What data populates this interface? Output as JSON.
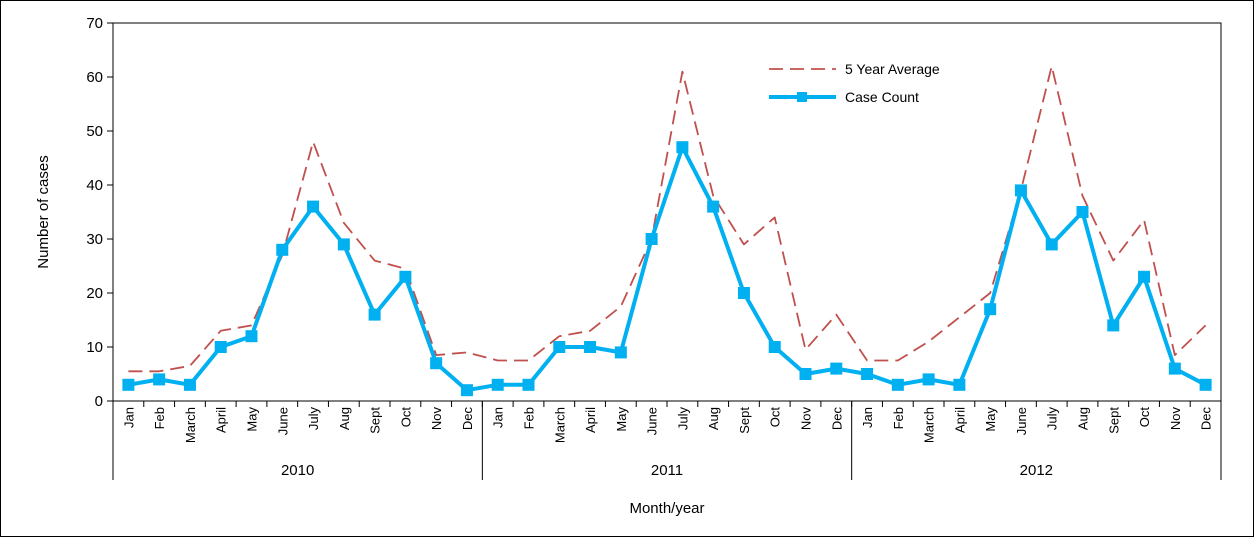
{
  "chart_data": {
    "type": "line",
    "title": "",
    "ylabel": "Number of cases",
    "xlabel": "Month/year",
    "ylim": [
      0,
      70
    ],
    "yticks": [
      0,
      10,
      20,
      30,
      40,
      50,
      60,
      70
    ],
    "grid": false,
    "legend_position": "top-right",
    "years": [
      "2010",
      "2011",
      "2012"
    ],
    "categories": [
      "Jan",
      "Feb",
      "March",
      "April",
      "May",
      "June",
      "July",
      "Aug",
      "Sept",
      "Oct",
      "Nov",
      "Dec",
      "Jan",
      "Feb",
      "March",
      "April",
      "May",
      "June",
      "July",
      "Aug",
      "Sept",
      "Oct",
      "Nov",
      "Dec",
      "Jan",
      "Feb",
      "March",
      "April",
      "May",
      "June",
      "July",
      "Aug",
      "Sept",
      "Oct",
      "Nov",
      "Dec"
    ],
    "series": [
      {
        "name": "5 Year Average",
        "style": "dashed",
        "color": "#C0504D",
        "values": [
          5.5,
          5.5,
          6.5,
          13,
          14,
          27,
          48,
          33,
          26,
          24.5,
          8.5,
          9,
          7.5,
          7.5,
          12,
          13,
          17.5,
          30,
          61,
          38,
          29,
          34,
          9.5,
          16,
          7.5,
          7.5,
          11,
          15.5,
          20,
          39,
          62,
          38,
          26,
          33.5,
          8.5,
          14
        ]
      },
      {
        "name": "Case Count",
        "style": "solid",
        "color": "#00B0F0",
        "values": [
          3,
          4,
          3,
          10,
          12,
          28,
          36,
          29,
          16,
          23,
          7,
          2,
          3,
          3,
          10,
          10,
          9,
          30,
          47,
          36,
          20,
          10,
          5,
          6,
          5,
          3,
          4,
          3,
          17,
          39,
          29,
          35,
          14,
          23,
          6,
          3
        ]
      }
    ]
  }
}
